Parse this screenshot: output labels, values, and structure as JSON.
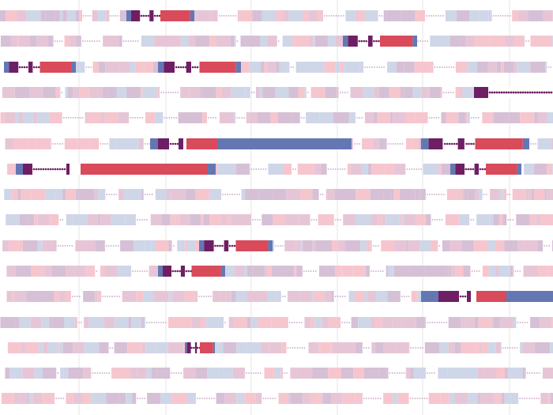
{
  "figure": {
    "background": "#ffffff",
    "gridline_color": "#e6e6e6",
    "dot_color": "#c6a6c6",
    "faint_palette": [
      "#f6c6cf",
      "#d6c0d6",
      "#cfd6e8",
      "#e6c6d6"
    ],
    "highlight_palette": {
      "dark_purple": "#6e1f63",
      "red": "#d94a5a",
      "blue": "#6577b3",
      "purple": "#9a5d95"
    },
    "row_count": 16,
    "column_dividers": 6
  }
}
